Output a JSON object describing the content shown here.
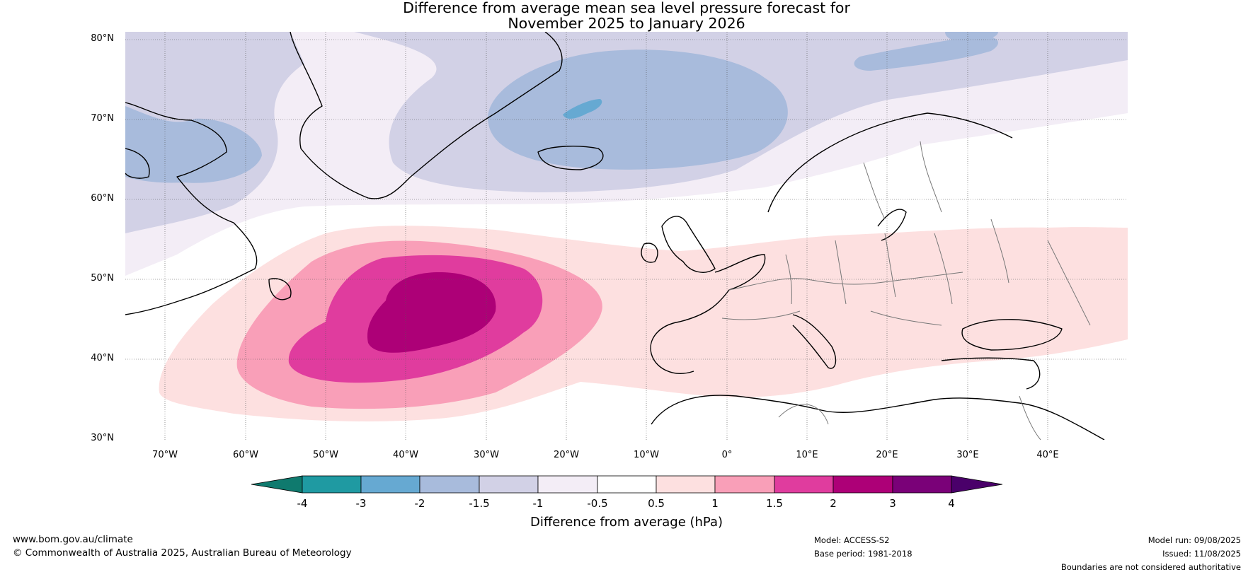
{
  "title": {
    "line1": "Difference from average mean sea level pressure forecast for",
    "line2": "November 2025 to January 2026"
  },
  "map": {
    "region": "North Atlantic and Europe",
    "lon_range": [
      -75,
      50
    ],
    "lat_range": [
      30,
      81
    ],
    "lat_labels": [
      "80°N",
      "70°N",
      "60°N",
      "50°N",
      "40°N",
      "30°N"
    ],
    "lon_labels": [
      "70°W",
      "60°W",
      "50°W",
      "40°W",
      "30°W",
      "20°W",
      "10°W",
      "0°",
      "10°E",
      "20°E",
      "30°E",
      "40°E"
    ],
    "gridlines": "dotted",
    "anomaly_features": [
      {
        "type": "negative",
        "level_range": "-3 to -2",
        "location": "Greenland Sea / north of Iceland",
        "min_class": "-3 to -2"
      },
      {
        "type": "negative",
        "level_range": "-2 to -1.5",
        "location": "Baffin Bay / Labrador",
        "min_class": "-2 to -1.5"
      },
      {
        "type": "positive",
        "level_range": "2 to 3",
        "location": "central North Atlantic near 45°N 35°W",
        "max_class": "2 to 3"
      },
      {
        "type": "positive",
        "level_range": "0.5 to 1",
        "location": "Europe and Mediterranean"
      }
    ]
  },
  "colorbar": {
    "label": "Difference from average (hPa)",
    "ticks": [
      "-4",
      "-3",
      "-2",
      "-1.5",
      "-1",
      "-0.5",
      "0.5",
      "1",
      "1.5",
      "2",
      "3",
      "4"
    ],
    "colors": [
      "#0f7a6e",
      "#1f9aa2",
      "#66a9d2",
      "#a8bbdc",
      "#d2d1e6",
      "#f3edf6",
      "#ffffff",
      "#fde0e0",
      "#f99fb8",
      "#e03c9e",
      "#ad0077",
      "#7a0178",
      "#4a006a"
    ]
  },
  "footer": {
    "url": "www.bom.gov.au/climate",
    "copyright": "© Commonwealth of Australia 2025, Australian Bureau of Meteorology",
    "model": "Model: ACCESS-S2",
    "base_period": "Base period: 1981-2018",
    "model_run": "Model run: 09/08/2025",
    "issued": "Issued: 11/08/2025",
    "disclaimer": "Boundaries are not considered authoritative"
  }
}
